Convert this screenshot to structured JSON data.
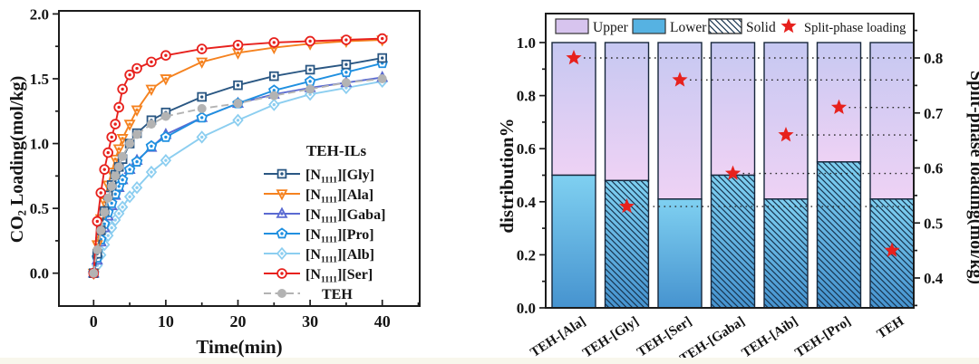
{
  "figure": {
    "background": "#ffffff",
    "accent_red": "#e7211d",
    "frame_color": "#1c1c1c"
  },
  "chart_data": [
    {
      "id": "co2-kinetics",
      "type": "line",
      "xlabel": "Time(min)",
      "ylabel": {
        "prefix": "CO",
        "sub": "2",
        "suffix": " Loading(mol/kg)"
      },
      "x_tick_labels": [
        "0",
        "10",
        "20",
        "30",
        "40"
      ],
      "x_ticks": [
        0,
        10,
        20,
        30,
        40
      ],
      "x_minor_ticks": [
        5,
        15,
        25,
        35,
        45
      ],
      "y_tick_labels": [
        "0.0",
        "0.5",
        "1.0",
        "1.5",
        "2.0"
      ],
      "y_ticks": [
        0,
        0.5,
        1.0,
        1.5,
        2.0
      ],
      "y_minor_ticks": [
        0.25,
        0.75,
        1.25,
        1.75
      ],
      "xlim": [
        -4.8,
        45.2
      ],
      "ylim": [
        -0.25,
        2.03
      ],
      "legend_title": "TEH-ILs",
      "x": [
        0,
        0.5,
        1,
        1.5,
        2,
        2.5,
        3,
        3.5,
        4,
        5,
        6,
        8,
        10,
        15,
        20,
        25,
        30,
        35,
        40
      ],
      "series": [
        {
          "key": "gly",
          "label": {
            "prefix": "[N",
            "sub": "1111",
            "suffix": "][Gly]"
          },
          "color": "#2a5783",
          "marker": "square",
          "dash": null,
          "values": [
            0,
            0.15,
            0.33,
            0.48,
            0.6,
            0.68,
            0.76,
            0.82,
            0.88,
            1.0,
            1.08,
            1.18,
            1.24,
            1.36,
            1.45,
            1.52,
            1.57,
            1.61,
            1.66
          ]
        },
        {
          "key": "ala",
          "label": {
            "prefix": "[N",
            "sub": "1111",
            "suffix": "][Ala]"
          },
          "color": "#f5821f",
          "marker": "tri-down",
          "dash": null,
          "values": [
            0,
            0.22,
            0.42,
            0.55,
            0.68,
            0.78,
            0.88,
            0.96,
            1.04,
            1.15,
            1.26,
            1.42,
            1.5,
            1.63,
            1.7,
            1.74,
            1.77,
            1.79,
            1.8
          ]
        },
        {
          "key": "gaba",
          "label": {
            "prefix": "[N",
            "sub": "1111",
            "suffix": "][Gaba]"
          },
          "color": "#5a6ad2",
          "marker": "tri-up",
          "dash": null,
          "values": [
            0,
            0.1,
            0.24,
            0.35,
            0.44,
            0.52,
            0.6,
            0.66,
            0.72,
            0.8,
            0.87,
            0.97,
            1.07,
            1.2,
            1.31,
            1.38,
            1.43,
            1.47,
            1.51
          ]
        },
        {
          "key": "pro",
          "label": {
            "prefix": "[N",
            "sub": "1111",
            "suffix": "][Pro]"
          },
          "color": "#2090e0",
          "marker": "pentagon",
          "dash": null,
          "values": [
            0,
            0.12,
            0.26,
            0.38,
            0.47,
            0.54,
            0.61,
            0.67,
            0.72,
            0.8,
            0.86,
            0.98,
            1.05,
            1.2,
            1.31,
            1.41,
            1.48,
            1.55,
            1.62
          ]
        },
        {
          "key": "alb",
          "label": {
            "prefix": "[N",
            "sub": "1111",
            "suffix": "][Alb]"
          },
          "color": "#8ccef0",
          "marker": "diamond",
          "dash": null,
          "values": [
            0,
            0.06,
            0.14,
            0.22,
            0.29,
            0.35,
            0.41,
            0.46,
            0.51,
            0.59,
            0.66,
            0.78,
            0.87,
            1.05,
            1.18,
            1.3,
            1.38,
            1.43,
            1.48
          ]
        },
        {
          "key": "ser",
          "label": {
            "prefix": "[N",
            "sub": "1111",
            "suffix": "][Ser]"
          },
          "color": "#e7211d",
          "marker": "circle",
          "dash": null,
          "values": [
            0,
            0.4,
            0.62,
            0.8,
            0.93,
            1.05,
            1.15,
            1.28,
            1.42,
            1.53,
            1.58,
            1.63,
            1.68,
            1.73,
            1.76,
            1.78,
            1.79,
            1.8,
            1.81
          ]
        },
        {
          "key": "teh",
          "label": {
            "prefix": "",
            "sub": "",
            "suffix": "TEH"
          },
          "color": "#b3b3b3",
          "marker": "dot",
          "dash": "8 4.5",
          "values": [
            0,
            0.18,
            0.33,
            0.47,
            0.58,
            0.67,
            0.75,
            0.82,
            0.9,
            1.0,
            1.07,
            1.15,
            1.21,
            1.27,
            1.31,
            1.37,
            1.42,
            1.47,
            1.5
          ]
        }
      ],
      "draw_order": [
        "alb",
        "gaba",
        "pro",
        "ala",
        "gly",
        "ser",
        "teh"
      ]
    },
    {
      "id": "phase-distribution",
      "type": "stacked-bar-with-scatter",
      "categories": [
        "TEH-[Ala]",
        "TEH-[Gly]",
        "TEH-[Ser]",
        "TEH-[Gaba]",
        "TEH-[Aib]",
        "TEH-[Pro]",
        "TEH"
      ],
      "lower": {
        "label": "Lower",
        "values": [
          0.5,
          0.48,
          0.41,
          0.5,
          0.41,
          0.55,
          0.41
        ]
      },
      "upper": {
        "label": "Upper",
        "values": [
          0.5,
          0.52,
          0.59,
          0.5,
          0.59,
          0.45,
          0.59
        ]
      },
      "solid": {
        "label": "Solid",
        "hatched": [
          false,
          true,
          false,
          true,
          true,
          true,
          true
        ]
      },
      "stars": {
        "label": "Split-phase loading",
        "axis": "right",
        "values": [
          0.8,
          0.53,
          0.76,
          0.59,
          0.66,
          0.71,
          0.45
        ],
        "guides": [
          true,
          true,
          true,
          true,
          true,
          true,
          false
        ]
      },
      "left_axis": {
        "label": "distribution%",
        "tick_labels": [
          "0.0",
          "0.2",
          "0.4",
          "0.6",
          "0.8",
          "1.0"
        ],
        "ticks": [
          0,
          0.2,
          0.4,
          0.6,
          0.8,
          1.0
        ],
        "minor_ticks": [
          0.1,
          0.3,
          0.5,
          0.7,
          0.9
        ]
      },
      "right_axis": {
        "label": "Split-phase loading(mol/kg)",
        "tick_labels": [
          "0.4",
          "0.5",
          "0.6",
          "0.7",
          "0.8"
        ],
        "ticks": [
          0.4,
          0.5,
          0.6,
          0.7,
          0.8
        ],
        "minor_ticks": [
          0.35,
          0.45,
          0.55,
          0.65,
          0.75,
          0.85
        ]
      },
      "colors": {
        "lower_top": "#7fd0f1",
        "lower_bottom": "#4693cf",
        "upper_top": "#c6c8f2",
        "upper_bottom": "#eed2f4",
        "legend_upper_patch": "#d7c4ee",
        "legend_lower_patch": "#56b2e2",
        "hatch": "#17344f",
        "bar_border": "#16263a",
        "star": "#e7211d",
        "guide": "#2a2a2a"
      }
    }
  ]
}
